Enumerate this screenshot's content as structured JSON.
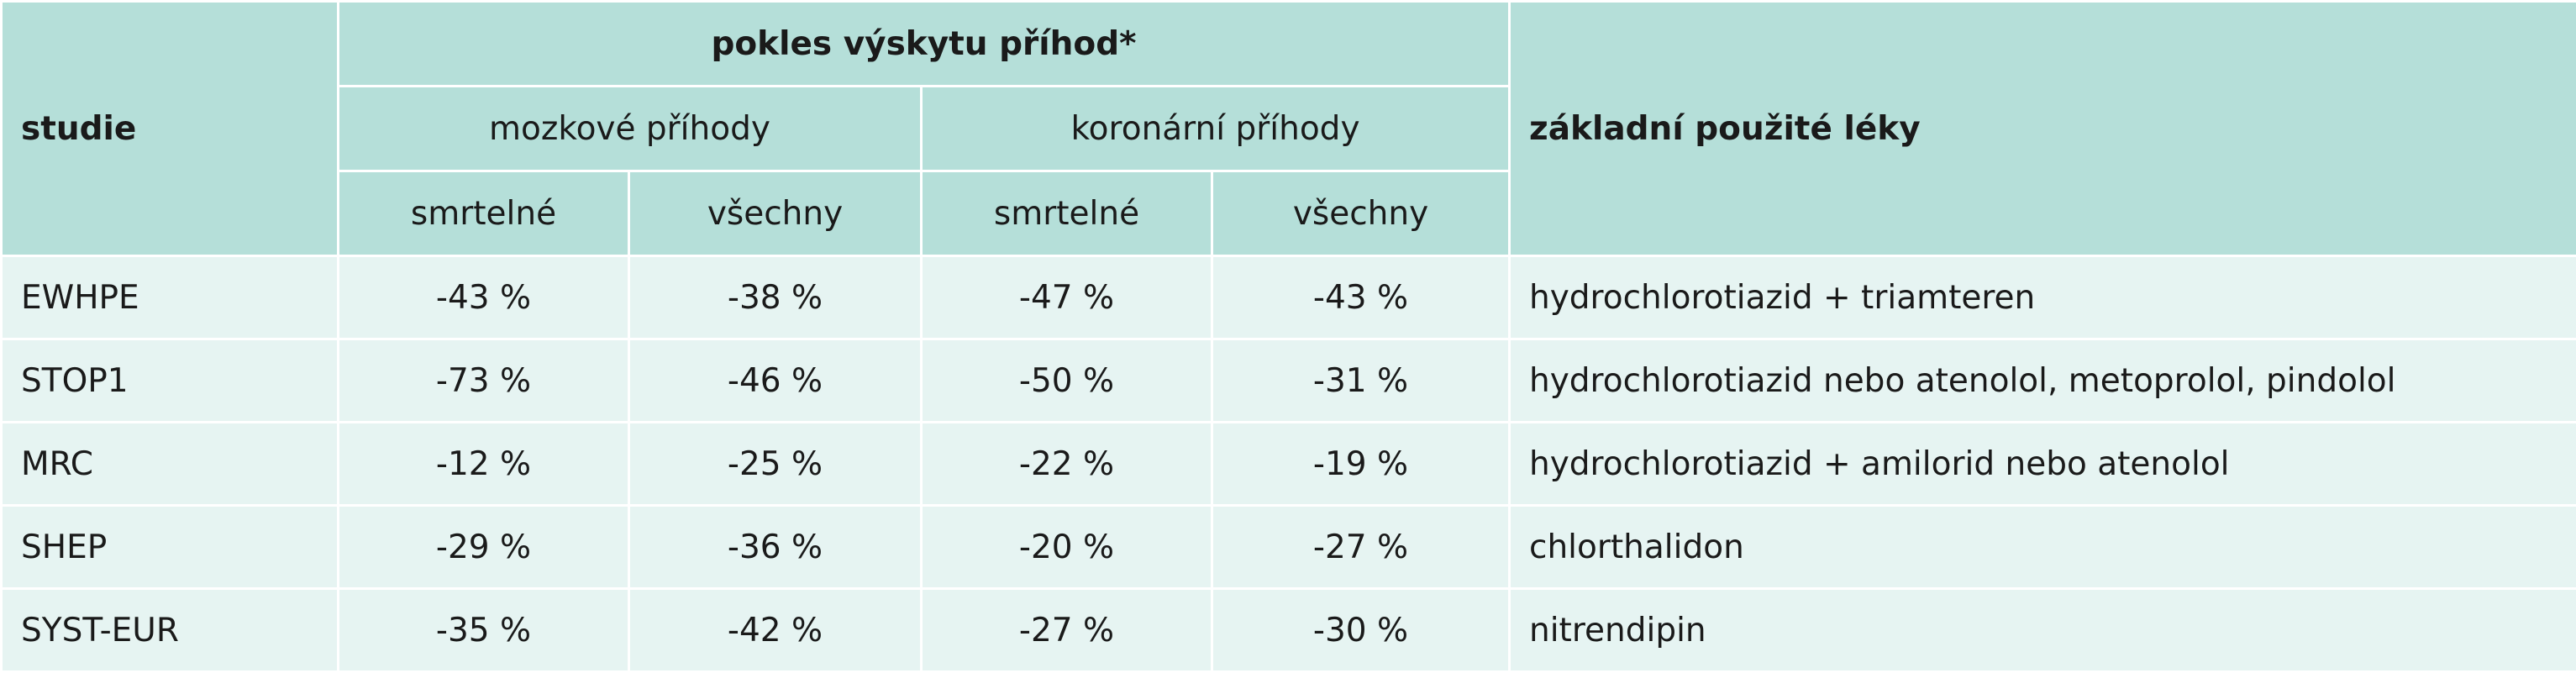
{
  "header": {
    "group": "pokles výskytu příhod*",
    "study": "studie",
    "stroke": "mozkové příhody",
    "coronary": "koronární příhody",
    "drugs": "základní použité léky",
    "sub": [
      "smrtelné",
      "všechny",
      "smrtelné",
      "všechny"
    ]
  },
  "table": {
    "rows": [
      [
        "EWHPE",
        "-43 %",
        "-38 %",
        "-47 %",
        "-43 %",
        "hydrochlorotiazid + triamteren"
      ],
      [
        "STOP1",
        "-73 %",
        "-46 %",
        "-50 %",
        "-31 %",
        "hydrochlorotiazid nebo atenolol, metoprolol, pindolol"
      ],
      [
        "MRC",
        "-12 %",
        "-25 %",
        "-22 %",
        "-19 %",
        "hydrochlorotiazid + amilorid nebo atenolol"
      ],
      [
        "SHEP",
        "-29 %",
        "-36 %",
        "-20 %",
        "-27 %",
        "chlorthalidon"
      ],
      [
        "SYST-EUR",
        "-35 %",
        "-42 %",
        "-27 %",
        "-30 %",
        "nitrendipin"
      ]
    ]
  }
}
